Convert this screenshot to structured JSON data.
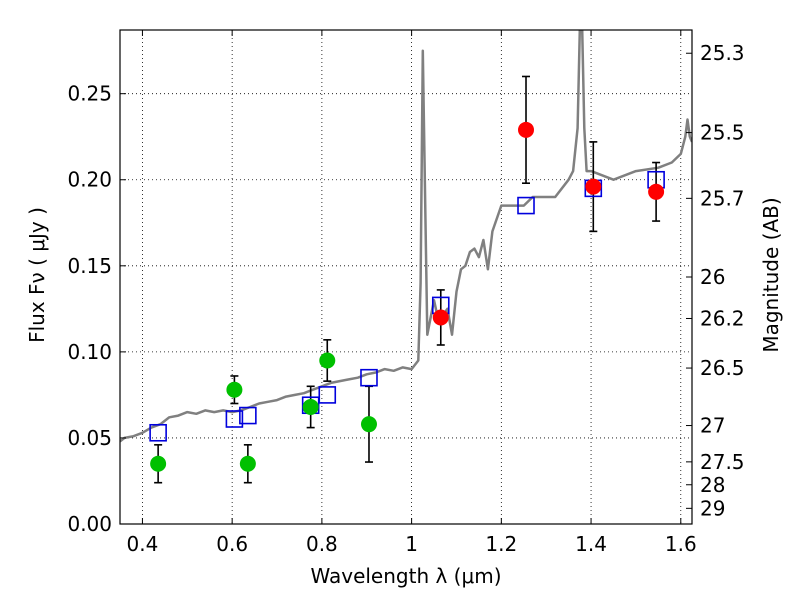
{
  "chart_data": {
    "type": "scatter",
    "xlabel": "Wavelength  λ (μm)",
    "ylabel": "Flux  Fν  ( μJy )",
    "y2label": "Magnitude (AB)",
    "xlim": [
      0.35,
      1.625
    ],
    "ylim": [
      0.0,
      0.287
    ],
    "grid": true,
    "grid_style": "dotted",
    "x_ticks": [
      "0.4",
      "0.6",
      "0.8",
      "1",
      "1.2",
      "1.4",
      "1.6"
    ],
    "x_tick_values": [
      0.4,
      0.6,
      0.8,
      1.0,
      1.2,
      1.4,
      1.6
    ],
    "y_ticks": [
      "0.00",
      "0.05",
      "0.10",
      "0.15",
      "0.20",
      "0.25"
    ],
    "y_tick_values": [
      0.0,
      0.05,
      0.1,
      0.15,
      0.2,
      0.25
    ],
    "y2_ticks": [
      {
        "label": "25.3",
        "flux": 0.2735
      },
      {
        "label": "25.5",
        "flux": 0.2274
      },
      {
        "label": "25.7",
        "flux": 0.1892
      },
      {
        "label": "26",
        "flux": 0.1435
      },
      {
        "label": "26.2",
        "flux": 0.1194
      },
      {
        "label": "26.5",
        "flux": 0.0906
      },
      {
        "label": "27",
        "flux": 0.0572
      },
      {
        "label": "27.5",
        "flux": 0.0361
      },
      {
        "label": "28",
        "flux": 0.0228
      },
      {
        "label": "29",
        "flux": 0.0091
      }
    ],
    "colors": {
      "model": "#808080",
      "green": "#00c000",
      "red": "#ff0000",
      "boxes": "#0000dd",
      "errorbars": "#000000"
    },
    "series": [
      {
        "role": "model spectrum",
        "x": [
          0.35,
          0.36,
          0.38,
          0.4,
          0.42,
          0.44,
          0.46,
          0.48,
          0.5,
          0.52,
          0.54,
          0.56,
          0.58,
          0.6,
          0.62,
          0.64,
          0.66,
          0.68,
          0.7,
          0.72,
          0.74,
          0.76,
          0.78,
          0.8,
          0.82,
          0.84,
          0.86,
          0.88,
          0.9,
          0.92,
          0.94,
          0.96,
          0.98,
          1.0,
          1.015,
          1.02,
          1.025,
          1.03,
          1.035,
          1.05,
          1.06,
          1.08,
          1.09,
          1.1,
          1.11,
          1.12,
          1.13,
          1.14,
          1.15,
          1.16,
          1.17,
          1.18,
          1.2,
          1.22,
          1.25,
          1.27,
          1.3,
          1.32,
          1.35,
          1.36,
          1.37,
          1.375,
          1.38,
          1.385,
          1.39,
          1.4,
          1.45,
          1.5,
          1.55,
          1.58,
          1.6,
          1.61,
          1.615,
          1.62,
          1.625
        ],
        "y": [
          0.048,
          0.05,
          0.051,
          0.053,
          0.056,
          0.058,
          0.062,
          0.063,
          0.065,
          0.064,
          0.066,
          0.065,
          0.066,
          0.065,
          0.066,
          0.068,
          0.07,
          0.071,
          0.072,
          0.074,
          0.075,
          0.076,
          0.078,
          0.08,
          0.082,
          0.083,
          0.084,
          0.085,
          0.087,
          0.088,
          0.09,
          0.089,
          0.091,
          0.09,
          0.095,
          0.14,
          0.275,
          0.19,
          0.11,
          0.13,
          0.118,
          0.125,
          0.11,
          0.135,
          0.148,
          0.15,
          0.158,
          0.16,
          0.155,
          0.165,
          0.148,
          0.17,
          0.185,
          0.185,
          0.185,
          0.19,
          0.19,
          0.19,
          0.2,
          0.205,
          0.23,
          0.287,
          0.29,
          0.23,
          0.205,
          0.205,
          0.2,
          0.205,
          0.207,
          0.21,
          0.215,
          0.225,
          0.235,
          0.225,
          0.222
        ]
      },
      {
        "role": "model photometry (open squares)",
        "x": [
          0.435,
          0.605,
          0.635,
          0.775,
          0.812,
          0.905,
          1.065,
          1.255,
          1.405,
          1.545
        ],
        "y": [
          0.053,
          0.061,
          0.063,
          0.069,
          0.075,
          0.085,
          0.127,
          0.185,
          0.195,
          0.2
        ]
      },
      {
        "role": "green measurements",
        "x": [
          0.435,
          0.605,
          0.635,
          0.775,
          0.812,
          0.905
        ],
        "y": [
          0.035,
          0.078,
          0.035,
          0.068,
          0.095,
          0.058
        ],
        "err": [
          0.011,
          0.008,
          0.011,
          0.012,
          0.012,
          0.022
        ]
      },
      {
        "role": "red measurements",
        "x": [
          1.065,
          1.255,
          1.405,
          1.545
        ],
        "y": [
          0.12,
          0.229,
          0.196,
          0.193
        ],
        "err": [
          0.016,
          0.031,
          0.026,
          0.017
        ]
      }
    ]
  }
}
